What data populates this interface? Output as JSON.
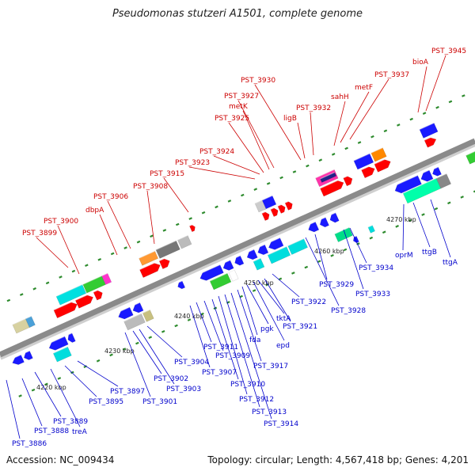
{
  "title": "Pseudomonas stutzeri A1501, complete genome",
  "footer": {
    "accession": "Accession: NC_009434",
    "summary": "Topology: circular; Length: 4,567,418 bp; Genes: 4,201"
  },
  "colors": {
    "forward_label": "#cc0000",
    "reverse_label": "#0000cc",
    "backbone": "#8a8a8a",
    "tick": "#2e8b2e"
  },
  "scale_labels": [
    "4220 kbp",
    "4230 kbp",
    "4240 kbp",
    "4250 kbp",
    "4260 kbp",
    "4270 kbp"
  ],
  "forward_genes": [
    "PST_3899",
    "PST_3900",
    "dbpA",
    "PST_3906",
    "PST_3908",
    "PST_3915",
    "PST_3923",
    "PST_3924",
    "PST_3925",
    "metK",
    "PST_3927",
    "PST_3930",
    "ligB",
    "PST_3932",
    "sahH",
    "metF",
    "PST_3937",
    "bioA",
    "PST_3945"
  ],
  "reverse_genes": [
    "PST_3886",
    "PST_3888",
    "PST_3889",
    "treA",
    "PST_3895",
    "PST_3897",
    "PST_3901",
    "PST_3902",
    "PST_3903",
    "PST_3904",
    "PST_3907",
    "PST_3909",
    "PST_3910",
    "PST_3911",
    "PST_3912",
    "PST_3913",
    "PST_3914",
    "PST_3917",
    "fda",
    "pgk",
    "epd",
    "tktA",
    "PST_3921",
    "PST_3922",
    "PST_3928",
    "PST_3929",
    "PST_3933",
    "PST_3934",
    "oprM",
    "ttgB",
    "ttgA"
  ]
}
